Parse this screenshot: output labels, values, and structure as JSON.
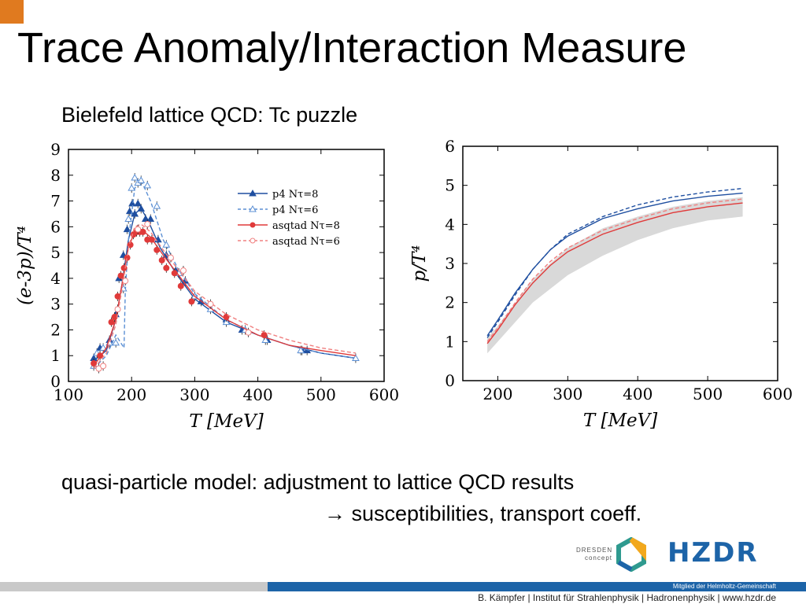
{
  "slide": {
    "title": "Trace Anomaly/Interaction Measure",
    "subtitle": "Bielefeld lattice QCD: Tc puzzle",
    "note_line1": "quasi-particle model: adjustment to lattice QCD results",
    "note_line2": "→ susceptibilities, transport coeff.",
    "dresden_logo": "DRESDEN concept",
    "hzdr_logo": "HZDR",
    "member_line": "Mitglied der Helmholtz-Gemeinschaft",
    "footer": "B. Kämpfer | Institut für Strahlenphysik | Hadronenphysik | www.hzdr.de",
    "colors": {
      "accent": "#e07a1f",
      "brand_blue": "#1d64a8",
      "footer_gray": "#c9c9c9"
    }
  },
  "chart_data": [
    {
      "type": "line",
      "title": "",
      "xlabel": "T [MeV]",
      "ylabel": "(e-3p)/T⁴",
      "xlim": [
        100,
        600
      ],
      "ylim": [
        0,
        9
      ],
      "xticks": [
        100,
        200,
        300,
        400,
        500,
        600
      ],
      "yticks": [
        0,
        1,
        2,
        3,
        4,
        5,
        6,
        7,
        8,
        9
      ],
      "legend_position": "top-right",
      "series": [
        {
          "name": "p4 Nτ=8",
          "color": "#1f4fa0",
          "dash": "solid",
          "marker": "triangle-filled",
          "curve": {
            "x": [
              140,
              160,
              175,
              185,
              195,
              205,
              215,
              225,
              245,
              270,
              300,
              350,
              400,
              450,
              500,
              555
            ],
            "y": [
              0.8,
              1.2,
              2.4,
              3.8,
              5.5,
              6.5,
              6.7,
              6.3,
              5.2,
              4.2,
              3.2,
              2.3,
              1.8,
              1.4,
              1.1,
              0.9
            ]
          },
          "points": {
            "x": [
              140,
              150,
              165,
              175,
              180,
              187,
              193,
              197,
              201,
              205,
              210,
              215,
              222,
              230,
              242,
              255,
              270,
              285,
              310,
              350,
              375,
              415,
              470,
              478
            ],
            "y": [
              0.9,
              1.3,
              1.6,
              2.6,
              4.0,
              4.9,
              5.9,
              6.6,
              6.9,
              6.5,
              6.9,
              6.7,
              6.3,
              6.3,
              5.5,
              4.9,
              4.3,
              3.9,
              3.1,
              2.4,
              2.0,
              1.6,
              1.2,
              1.2
            ]
          }
        },
        {
          "name": "p4 Nτ=6",
          "color": "#5b8fd4",
          "dash": "dashed",
          "marker": "triangle-open",
          "curve": {
            "x": [
              140,
              160,
              175,
              188,
              190,
              195,
              205,
              215,
              230,
              250,
              275,
              300,
              350,
              400,
              450,
              500,
              555
            ],
            "y": [
              0.5,
              1.0,
              1.8,
              1.3,
              3.5,
              5.5,
              7.5,
              7.8,
              7.0,
              5.5,
              4.3,
              3.4,
              2.4,
              1.8,
              1.4,
              1.1,
              0.9
            ]
          },
          "points": {
            "x": [
              140,
              145,
              155,
              165,
              175,
              187,
              195,
              200,
              205,
              210,
              215,
              225,
              240,
              255,
              275,
              300,
              325,
              350,
              380,
              412,
              468,
              555
            ],
            "y": [
              0.6,
              1.1,
              1.3,
              1.5,
              1.5,
              3.6,
              6.3,
              7.5,
              7.9,
              7.7,
              7.8,
              7.6,
              6.8,
              5.3,
              4.2,
              3.3,
              2.8,
              2.3,
              2.0,
              1.6,
              1.2,
              0.9
            ]
          }
        },
        {
          "name": "asqtad Nτ=8",
          "color": "#e03a3a",
          "dash": "solid",
          "marker": "circle-filled",
          "curve": {
            "x": [
              140,
              160,
              175,
              185,
              195,
              205,
              215,
              230,
              250,
              275,
              300,
              350,
              400,
              450,
              500,
              555
            ],
            "y": [
              0.6,
              1.3,
              2.4,
              3.8,
              5.2,
              5.8,
              5.9,
              5.6,
              4.9,
              4.1,
              3.3,
              2.4,
              1.8,
              1.4,
              1.2,
              1.0
            ]
          },
          "points": {
            "x": [
              140,
              150,
              168,
              173,
              178,
              183,
              188,
              193,
              198,
              203,
              208,
              213,
              218,
              225,
              232,
              240,
              248,
              255,
              268,
              278,
              295,
              350,
              410
            ],
            "y": [
              0.7,
              1.0,
              2.3,
              2.5,
              3.3,
              4.1,
              4.4,
              4.8,
              5.3,
              5.7,
              5.8,
              5.8,
              5.8,
              5.5,
              5.5,
              5.1,
              4.7,
              4.4,
              4.2,
              3.7,
              3.1,
              2.5,
              1.8
            ]
          }
        },
        {
          "name": "asqtad Nτ=6",
          "color": "#f08080",
          "dash": "dashed",
          "marker": "circle-open",
          "curve": {
            "x": [
              140,
              160,
              175,
              185,
              195,
              205,
              215,
              230,
              250,
              275,
              300,
              350,
              400,
              450,
              500,
              555
            ],
            "y": [
              0.5,
              1.1,
              2.2,
              3.6,
              5.2,
              6.0,
              6.1,
              5.8,
              5.1,
              4.3,
              3.5,
              2.6,
              2.0,
              1.6,
              1.3,
              1.1
            ]
          },
          "points": {
            "x": [
              148,
              155,
              178,
              190,
              210,
              225,
              262,
              282,
              325,
              385
            ],
            "y": [
              0.5,
              0.6,
              2.8,
              3.9,
              5.9,
              6.1,
              4.8,
              4.3,
              3.0,
              1.9
            ]
          }
        }
      ]
    },
    {
      "type": "line",
      "title": "",
      "xlabel": "T [MeV]",
      "ylabel": "p/T⁴",
      "xlim": [
        150,
        600
      ],
      "ylim": [
        0,
        6
      ],
      "xticks": [
        200,
        300,
        400,
        500,
        600
      ],
      "yticks": [
        0,
        1,
        2,
        3,
        4,
        5,
        6
      ],
      "legend_position": "none",
      "band": {
        "x": [
          185,
          200,
          250,
          300,
          350,
          400,
          450,
          500,
          550
        ],
        "low": [
          0.7,
          1.0,
          2.0,
          2.7,
          3.2,
          3.6,
          3.9,
          4.1,
          4.2
        ],
        "high": [
          1.1,
          1.4,
          2.6,
          3.4,
          3.9,
          4.2,
          4.45,
          4.6,
          4.7
        ]
      },
      "series": [
        {
          "color": "#1f4fa0",
          "dash": "solid",
          "x": [
            185,
            200,
            225,
            250,
            275,
            300,
            350,
            400,
            450,
            500,
            550
          ],
          "y": [
            1.15,
            1.55,
            2.25,
            2.85,
            3.35,
            3.7,
            4.15,
            4.4,
            4.6,
            4.72,
            4.8
          ]
        },
        {
          "color": "#1f4fa0",
          "dash": "dashed",
          "x": [
            185,
            200,
            225,
            250,
            275,
            300,
            350,
            400,
            450,
            500,
            550
          ],
          "y": [
            1.1,
            1.5,
            2.2,
            2.85,
            3.35,
            3.75,
            4.2,
            4.5,
            4.7,
            4.83,
            4.92
          ]
        },
        {
          "color": "#e03a3a",
          "dash": "solid",
          "x": [
            185,
            200,
            225,
            250,
            275,
            300,
            350,
            400,
            450,
            500,
            550
          ],
          "y": [
            0.95,
            1.3,
            1.95,
            2.5,
            2.95,
            3.3,
            3.75,
            4.05,
            4.3,
            4.45,
            4.55
          ]
        },
        {
          "color": "#f08080",
          "dash": "dashed",
          "x": [
            185,
            200,
            225,
            250,
            275,
            300,
            350,
            400,
            450,
            500,
            550
          ],
          "y": [
            1.0,
            1.35,
            2.0,
            2.6,
            3.05,
            3.4,
            3.85,
            4.15,
            4.4,
            4.55,
            4.65
          ]
        }
      ]
    }
  ]
}
